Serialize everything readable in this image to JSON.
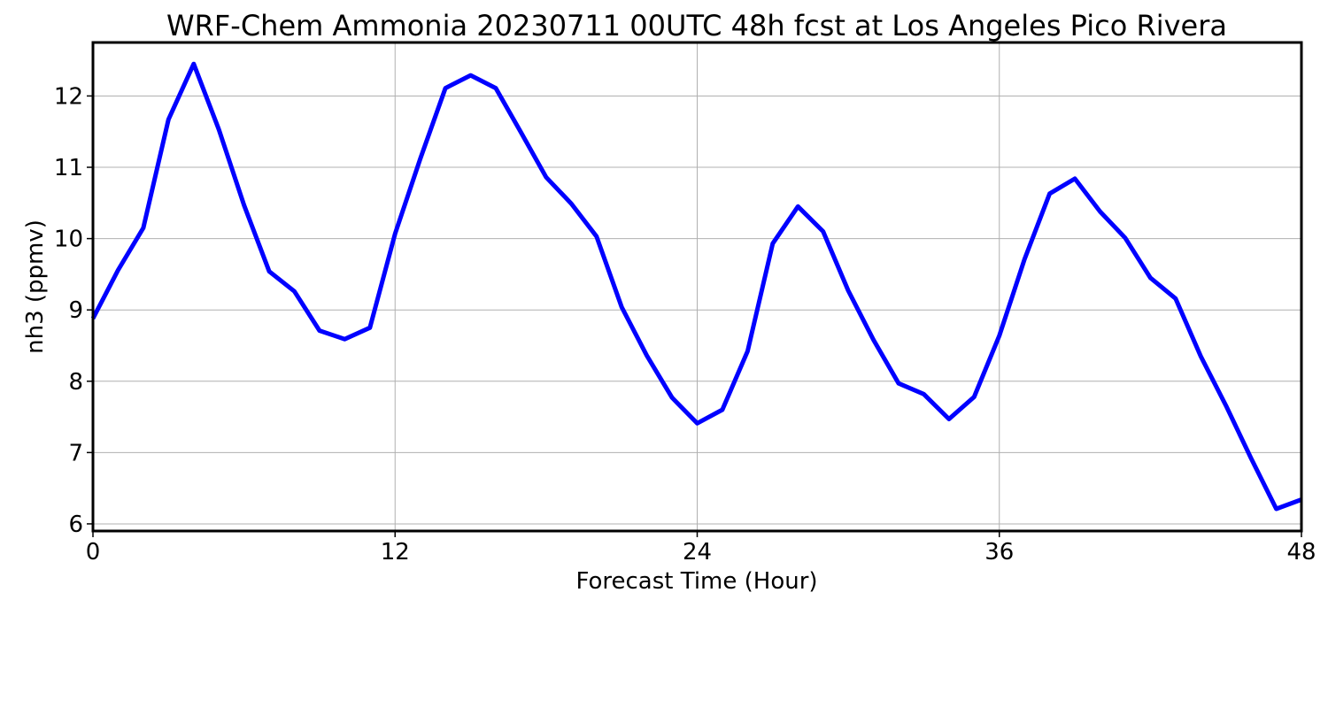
{
  "chart_data": {
    "type": "line",
    "title": "WRF-Chem Ammonia  20230711 00UTC 48h fcst at Los Angeles Pico Rivera",
    "xlabel": "Forecast Time (Hour)",
    "ylabel": "nh3  (ppmv)",
    "xlim": [
      0,
      48
    ],
    "ylim": [
      5.9,
      12.75
    ],
    "xticks": [
      0,
      12,
      24,
      36,
      48
    ],
    "xtick_labels": [
      "0",
      "12",
      "24",
      "36",
      "48"
    ],
    "yticks": [
      6,
      7,
      8,
      9,
      10,
      11,
      12
    ],
    "ytick_labels": [
      "6",
      "7",
      "8",
      "9",
      "10",
      "11",
      "12"
    ],
    "grid": true,
    "line_color": "#0000ff",
    "x": [
      0,
      1,
      2,
      3,
      4,
      5,
      6,
      7,
      8,
      9,
      10,
      11,
      12,
      13,
      14,
      15,
      16,
      17,
      18,
      19,
      20,
      21,
      22,
      23,
      24,
      25,
      26,
      27,
      28,
      29,
      30,
      31,
      32,
      33,
      34,
      35,
      36,
      37,
      38,
      39,
      40,
      41,
      42,
      43,
      44,
      45,
      46,
      47,
      48
    ],
    "values": [
      8.88,
      9.56,
      10.15,
      11.67,
      12.45,
      11.53,
      10.47,
      9.54,
      9.26,
      8.71,
      8.59,
      8.75,
      10.07,
      11.12,
      12.11,
      12.29,
      12.11,
      11.49,
      10.86,
      10.49,
      10.03,
      9.04,
      8.36,
      7.77,
      7.41,
      7.6,
      8.42,
      9.93,
      10.45,
      10.1,
      9.27,
      8.58,
      7.97,
      7.82,
      7.47,
      7.78,
      8.64,
      9.71,
      10.63,
      10.84,
      10.38,
      10.01,
      9.45,
      9.16,
      8.35,
      7.66,
      6.92,
      6.21,
      6.34
    ]
  }
}
